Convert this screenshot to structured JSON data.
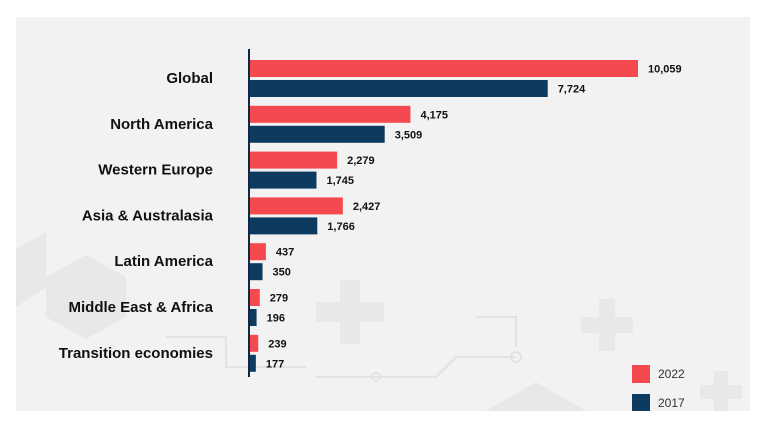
{
  "chart_data": {
    "type": "bar",
    "orientation": "horizontal",
    "categories": [
      "Global",
      "North America",
      "Western Europe",
      "Asia & Australasia",
      "Latin America",
      "Middle East & Africa",
      "Transition economies"
    ],
    "series": [
      {
        "name": "2022",
        "color": "#f44a4f",
        "values": [
          10059,
          4175,
          2279,
          2427,
          437,
          279,
          239
        ],
        "labels": [
          "10,059",
          "4,175",
          "2,279",
          "2,427",
          "437",
          "279",
          "239"
        ]
      },
      {
        "name": "2017",
        "color": "#0d3a5f",
        "values": [
          7724,
          3509,
          1745,
          1766,
          350,
          196,
          177
        ],
        "labels": [
          "7,724",
          "3,509",
          "1,745",
          "1,766",
          "350",
          "196",
          "177"
        ]
      }
    ],
    "title": "",
    "xlabel": "",
    "ylabel": "",
    "xlim": [
      0,
      10059
    ],
    "grid": false,
    "legend_position": "bottom-right"
  },
  "legend": {
    "item_2022": "2022",
    "item_2017": "2017"
  }
}
